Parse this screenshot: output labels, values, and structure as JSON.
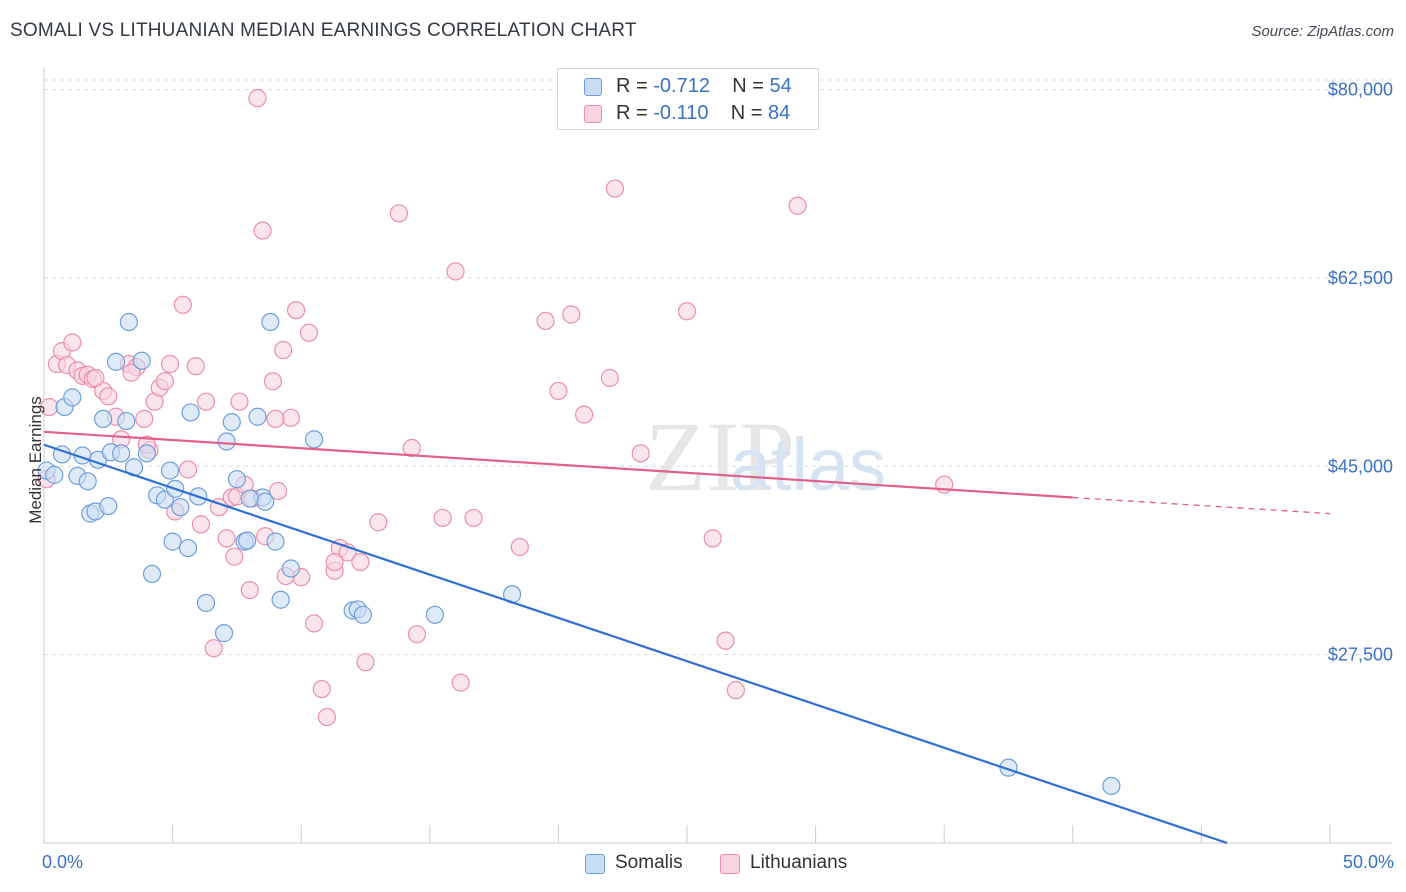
{
  "header": {
    "title": "SOMALI VS LITHUANIAN MEDIAN EARNINGS CORRELATION CHART",
    "source": "Source: ZipAtlas.com"
  },
  "watermark": "ZIPatlas",
  "colors": {
    "somali_fill": "#c9dcf5",
    "somali_stroke": "#6e9fdc",
    "somali_line": "#2f6fd3",
    "lithuanian_fill": "#f9d3df",
    "lithuanian_stroke": "#eb8fab",
    "lithuanian_line": "#e0608b",
    "axis_label": "#3a72c6",
    "grid": "#dddddd"
  },
  "legend": {
    "rows": [
      {
        "r_label": "R = ",
        "r_value": "-0.712",
        "n_label": "N = ",
        "n_value": "54"
      },
      {
        "r_label": "R = ",
        "r_value": "-0.110",
        "n_label": "N = ",
        "n_value": "84"
      }
    ]
  },
  "bottom_legend": {
    "somali": "Somalis",
    "lithuanian": "Lithuanians"
  },
  "chart_data": {
    "type": "scatter",
    "title": "SOMALI VS LITHUANIAN MEDIAN EARNINGS CORRELATION CHART",
    "xlabel": "",
    "ylabel": "Median Earnings",
    "xlim": [
      0,
      50
    ],
    "ylim": [
      10000,
      82000
    ],
    "x_tick_labels": [
      "0.0%",
      "50.0%"
    ],
    "y_ticks": [
      {
        "value": 27500,
        "label": "$27,500"
      },
      {
        "value": 45000,
        "label": "$45,000"
      },
      {
        "value": 62500,
        "label": "$62,500"
      },
      {
        "value": 80000,
        "label": "$80,000"
      }
    ],
    "grid": true,
    "legend_position": "top-center",
    "series": [
      {
        "name": "Somalis",
        "r": -0.712,
        "n": 54,
        "trend": {
          "x": [
            0,
            46
          ],
          "y": [
            47000,
            10000
          ]
        },
        "points": [
          [
            0.1,
            44600
          ],
          [
            0.4,
            44200
          ],
          [
            0.7,
            46100
          ],
          [
            0.8,
            50500
          ],
          [
            1.1,
            51400
          ],
          [
            1.3,
            44100
          ],
          [
            1.5,
            46000
          ],
          [
            1.7,
            43600
          ],
          [
            1.8,
            40600
          ],
          [
            2.0,
            40800
          ],
          [
            2.1,
            45600
          ],
          [
            2.3,
            49400
          ],
          [
            2.5,
            41300
          ],
          [
            2.6,
            46300
          ],
          [
            2.8,
            54700
          ],
          [
            3.0,
            46200
          ],
          [
            3.2,
            49200
          ],
          [
            3.3,
            58400
          ],
          [
            3.5,
            44900
          ],
          [
            3.8,
            54800
          ],
          [
            4.0,
            46200
          ],
          [
            4.2,
            35000
          ],
          [
            4.4,
            42300
          ],
          [
            4.7,
            41900
          ],
          [
            4.9,
            44600
          ],
          [
            5.0,
            38000
          ],
          [
            5.1,
            42900
          ],
          [
            5.3,
            41200
          ],
          [
            5.6,
            37400
          ],
          [
            5.7,
            50000
          ],
          [
            6.0,
            42200
          ],
          [
            6.3,
            32300
          ],
          [
            7.0,
            29500
          ],
          [
            7.1,
            47300
          ],
          [
            7.3,
            49100
          ],
          [
            7.5,
            43800
          ],
          [
            7.8,
            38000
          ],
          [
            7.9,
            38100
          ],
          [
            8.3,
            49600
          ],
          [
            8.5,
            42100
          ],
          [
            8.6,
            41700
          ],
          [
            8.8,
            58400
          ],
          [
            9.0,
            38000
          ],
          [
            9.2,
            32600
          ],
          [
            9.6,
            35500
          ],
          [
            10.5,
            47500
          ],
          [
            12.0,
            31600
          ],
          [
            12.2,
            31700
          ],
          [
            12.4,
            31200
          ],
          [
            15.2,
            31200
          ],
          [
            18.2,
            33100
          ],
          [
            37.5,
            17000
          ],
          [
            41.5,
            15300
          ],
          [
            8.0,
            42000
          ]
        ]
      },
      {
        "name": "Lithuanians",
        "r": -0.11,
        "n": 84,
        "trend": {
          "x": [
            0,
            40
          ],
          "y": [
            48200,
            42100
          ]
        },
        "trend_dashed": {
          "x": [
            40,
            50
          ],
          "y": [
            42100,
            40600
          ]
        },
        "points": [
          [
            0.1,
            43800
          ],
          [
            0.2,
            50500
          ],
          [
            0.5,
            54500
          ],
          [
            0.7,
            55700
          ],
          [
            0.9,
            54400
          ],
          [
            1.1,
            56500
          ],
          [
            1.3,
            53900
          ],
          [
            1.5,
            53400
          ],
          [
            1.7,
            53500
          ],
          [
            1.9,
            53100
          ],
          [
            2.3,
            52000
          ],
          [
            2.5,
            51500
          ],
          [
            2.8,
            49600
          ],
          [
            3.0,
            47500
          ],
          [
            3.3,
            54500
          ],
          [
            3.6,
            54200
          ],
          [
            3.9,
            49400
          ],
          [
            4.1,
            46500
          ],
          [
            4.3,
            51000
          ],
          [
            4.5,
            52300
          ],
          [
            4.7,
            52900
          ],
          [
            4.9,
            54500
          ],
          [
            5.1,
            40800
          ],
          [
            5.4,
            60000
          ],
          [
            5.6,
            44700
          ],
          [
            5.9,
            54300
          ],
          [
            6.1,
            39600
          ],
          [
            6.3,
            51000
          ],
          [
            6.6,
            28100
          ],
          [
            6.8,
            41200
          ],
          [
            7.1,
            38300
          ],
          [
            7.3,
            42100
          ],
          [
            7.5,
            42200
          ],
          [
            7.6,
            51000
          ],
          [
            7.8,
            43300
          ],
          [
            8.0,
            33500
          ],
          [
            8.1,
            42000
          ],
          [
            8.3,
            79200
          ],
          [
            8.5,
            66900
          ],
          [
            8.6,
            38500
          ],
          [
            8.9,
            52900
          ],
          [
            9.1,
            42700
          ],
          [
            9.3,
            55800
          ],
          [
            9.6,
            49500
          ],
          [
            9.8,
            59500
          ],
          [
            10.0,
            34700
          ],
          [
            10.3,
            57400
          ],
          [
            10.5,
            30400
          ],
          [
            10.8,
            24300
          ],
          [
            11.0,
            21700
          ],
          [
            11.3,
            35300
          ],
          [
            11.5,
            37400
          ],
          [
            11.8,
            37000
          ],
          [
            12.3,
            36100
          ],
          [
            12.5,
            26800
          ],
          [
            13.0,
            39800
          ],
          [
            13.8,
            68500
          ],
          [
            14.3,
            46700
          ],
          [
            14.5,
            29400
          ],
          [
            15.5,
            40200
          ],
          [
            16.0,
            63100
          ],
          [
            16.2,
            24900
          ],
          [
            16.7,
            40200
          ],
          [
            18.5,
            37500
          ],
          [
            19.5,
            58500
          ],
          [
            20.0,
            52000
          ],
          [
            20.5,
            59100
          ],
          [
            21.0,
            49800
          ],
          [
            22.0,
            53200
          ],
          [
            22.2,
            70800
          ],
          [
            23.2,
            46200
          ],
          [
            25.0,
            59400
          ],
          [
            26.0,
            38300
          ],
          [
            26.5,
            28800
          ],
          [
            26.9,
            24200
          ],
          [
            29.3,
            69200
          ],
          [
            35.0,
            43300
          ],
          [
            11.3,
            36100
          ],
          [
            9.4,
            34800
          ],
          [
            7.4,
            36600
          ],
          [
            9.0,
            49400
          ],
          [
            4.0,
            47000
          ],
          [
            2.0,
            53200
          ],
          [
            3.4,
            53700
          ]
        ]
      }
    ]
  }
}
